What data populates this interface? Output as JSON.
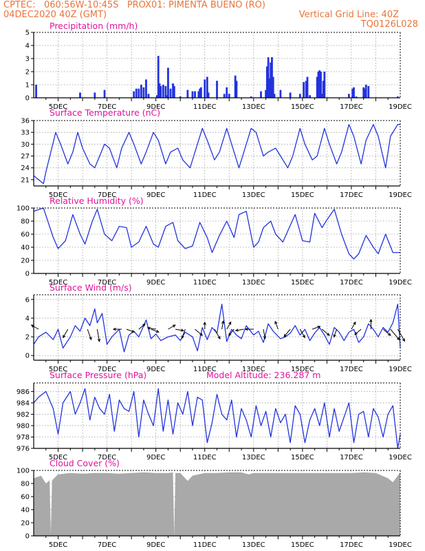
{
  "header": {
    "line1_left": "CPTEC:",
    "line1_coords": "060:56W-10:45S",
    "line1_station": "PROX01: PIMENTA BUENO (RO)",
    "line2_left": "04DEC2020 40Z (GMT)",
    "line2_right": "Vertical Grid Line: 40Z",
    "line3_right": "TQ0126L028"
  },
  "colors": {
    "header": "#e8743b",
    "title": "#e0139c",
    "line": "#2233dd",
    "cloud": "#a9a9a9"
  },
  "chart_data": [
    {
      "id": "precip",
      "type": "bar",
      "title": "Precipitation (mm/h)",
      "x_tick_labels": [
        "5DEC",
        "7DEC",
        "9DEC",
        "11DEC",
        "13DEC",
        "15DEC",
        "17DEC",
        "19DEC"
      ],
      "ylim": [
        0,
        5
      ],
      "yticks": [
        0,
        1,
        2,
        3,
        4,
        5
      ],
      "x_range_days": [
        4.0,
        19.0
      ],
      "grid": true,
      "x": [
        4.1,
        5.9,
        6.5,
        6.9,
        8.1,
        8.2,
        8.3,
        8.4,
        8.5,
        8.6,
        8.7,
        9.05,
        9.1,
        9.15,
        9.2,
        9.3,
        9.4,
        9.45,
        9.5,
        9.6,
        9.7,
        9.75,
        10.0,
        10.3,
        10.5,
        10.6,
        10.75,
        10.8,
        10.85,
        11.0,
        11.1,
        11.15,
        11.5,
        11.8,
        11.9,
        12.0,
        12.25,
        12.3,
        12.9,
        13.3,
        13.5,
        13.55,
        13.6,
        13.65,
        13.7,
        13.75,
        13.8,
        13.85,
        14.1,
        14.5,
        14.9,
        15.05,
        15.15,
        15.2,
        15.3,
        15.6,
        15.65,
        15.7,
        15.75,
        15.8,
        15.85,
        15.9,
        16.9,
        17.05,
        17.1,
        17.2,
        17.5,
        17.55,
        17.6,
        17.7,
        18.9
      ],
      "values": [
        1.0,
        0.4,
        0.4,
        0.6,
        0.5,
        0.7,
        0.7,
        1.0,
        0.8,
        1.4,
        0.3,
        0.2,
        3.2,
        1.1,
        0.9,
        1.0,
        0.9,
        0.2,
        2.3,
        0.7,
        1.1,
        0.9,
        0.1,
        0.6,
        0.5,
        0.5,
        0.5,
        0.7,
        0.8,
        1.4,
        1.6,
        0.4,
        1.3,
        0.3,
        0.8,
        0.3,
        1.7,
        1.3,
        0.1,
        0.5,
        0.6,
        2.4,
        3.1,
        1.5,
        2.7,
        3.1,
        1.6,
        0.3,
        0.6,
        0.4,
        0.3,
        1.2,
        1.3,
        1.6,
        0.2,
        1.6,
        2.0,
        2.1,
        2.0,
        0.3,
        1.3,
        2.0,
        0.3,
        0.7,
        0.8,
        0.1,
        0.8,
        0.7,
        1.0,
        0.9,
        0.1
      ]
    },
    {
      "id": "temp",
      "type": "line",
      "title": "Surface Temperature (nC)",
      "x_tick_labels": [
        "5DEC",
        "7DEC",
        "9DEC",
        "11DEC",
        "13DEC",
        "15DEC",
        "17DEC",
        "19DEC"
      ],
      "ylim": [
        19.4,
        36
      ],
      "yticks": [
        21,
        24,
        27,
        30,
        33,
        36
      ],
      "x_range_days": [
        4.0,
        19.0
      ],
      "grid": true,
      "x": [
        4.0,
        4.4,
        4.5,
        4.9,
        5.1,
        5.4,
        5.6,
        5.8,
        6.0,
        6.3,
        6.5,
        6.9,
        7.1,
        7.4,
        7.6,
        7.9,
        8.1,
        8.4,
        8.6,
        8.9,
        9.1,
        9.4,
        9.6,
        9.9,
        10.1,
        10.4,
        10.6,
        10.9,
        11.1,
        11.4,
        11.6,
        11.9,
        12.1,
        12.4,
        12.6,
        12.9,
        13.1,
        13.4,
        13.6,
        13.9,
        14.1,
        14.4,
        14.6,
        14.9,
        15.1,
        15.4,
        15.6,
        15.9,
        16.1,
        16.4,
        16.6,
        16.9,
        17.1,
        17.4,
        17.6,
        17.9,
        18.1,
        18.4,
        18.6,
        18.9,
        19.0
      ],
      "values": [
        22.0,
        20.0,
        23.0,
        33.0,
        30.0,
        25.0,
        28.0,
        33.0,
        29.0,
        25.0,
        24.0,
        30.0,
        29.0,
        24.0,
        29.0,
        33.0,
        30.0,
        25.0,
        28.0,
        33.0,
        31.0,
        25.0,
        28.0,
        29.0,
        26.0,
        24.0,
        28.0,
        34.0,
        31.0,
        26.0,
        28.0,
        34.0,
        30.0,
        24.0,
        28.0,
        34.0,
        33.0,
        27.0,
        28.0,
        29.0,
        27.0,
        24.0,
        27.0,
        34.0,
        30.0,
        26.0,
        27.0,
        34.0,
        30.0,
        25.0,
        28.0,
        35.0,
        32.0,
        25.0,
        31.0,
        35.0,
        32.0,
        24.0,
        32.0,
        35.0,
        35.0
      ]
    },
    {
      "id": "rh",
      "type": "line",
      "title": "Relative Humidity (%)",
      "x_tick_labels": [
        "5DEC",
        "7DEC",
        "9DEC",
        "11DEC",
        "13DEC",
        "15DEC",
        "17DEC",
        "19DEC"
      ],
      "ylim": [
        0,
        100
      ],
      "yticks": [
        0,
        20,
        40,
        60,
        80,
        100
      ],
      "x_range_days": [
        4.0,
        19.0
      ],
      "grid": true,
      "x": [
        4.0,
        4.4,
        4.8,
        5.0,
        5.3,
        5.6,
        5.9,
        6.1,
        6.4,
        6.6,
        6.9,
        7.2,
        7.5,
        7.8,
        8.0,
        8.3,
        8.6,
        8.9,
        9.1,
        9.4,
        9.7,
        9.9,
        10.2,
        10.5,
        10.8,
        11.1,
        11.3,
        11.6,
        11.9,
        12.2,
        12.4,
        12.7,
        13.0,
        13.2,
        13.4,
        13.7,
        13.9,
        14.2,
        14.4,
        14.7,
        15.0,
        15.3,
        15.5,
        15.8,
        16.0,
        16.3,
        16.6,
        16.9,
        17.1,
        17.3,
        17.6,
        17.9,
        18.1,
        18.4,
        18.7,
        19.0
      ],
      "values": [
        95.0,
        100.0,
        55.0,
        38.0,
        50.0,
        90.0,
        60.0,
        45.0,
        80.0,
        98.0,
        60.0,
        50.0,
        72.0,
        70.0,
        40.0,
        48.0,
        72.0,
        45.0,
        40.0,
        72.0,
        78.0,
        50.0,
        38.0,
        42.0,
        78.0,
        55.0,
        32.0,
        58.0,
        80.0,
        55.0,
        90.0,
        95.0,
        40.0,
        48.0,
        70.0,
        80.0,
        60.0,
        48.0,
        65.0,
        90.0,
        50.0,
        48.0,
        92.0,
        70.0,
        82.0,
        98.0,
        60.0,
        30.0,
        22.0,
        30.0,
        58.0,
        40.0,
        30.0,
        60.0,
        32.0,
        32.0
      ]
    },
    {
      "id": "wind",
      "type": "line",
      "title": "Surface Wind (m/s)",
      "x_tick_labels": [
        "5DEC",
        "7DEC",
        "9DEC",
        "11DEC",
        "13DEC",
        "15DEC",
        "17DEC",
        "19DEC"
      ],
      "ylim": [
        -0.5,
        6.5
      ],
      "yticks": [
        0,
        2,
        4,
        6
      ],
      "x_range_days": [
        4.0,
        19.0
      ],
      "grid": true,
      "x": [
        4.0,
        4.2,
        4.5,
        4.8,
        5.0,
        5.2,
        5.5,
        5.7,
        5.9,
        6.1,
        6.3,
        6.5,
        6.6,
        6.8,
        7.0,
        7.2,
        7.5,
        7.7,
        7.9,
        8.1,
        8.3,
        8.6,
        8.8,
        9.0,
        9.2,
        9.5,
        9.8,
        10.0,
        10.2,
        10.5,
        10.7,
        10.9,
        11.1,
        11.3,
        11.5,
        11.7,
        11.9,
        12.1,
        12.3,
        12.5,
        12.7,
        13.0,
        13.2,
        13.4,
        13.6,
        13.8,
        14.1,
        14.3,
        14.5,
        14.7,
        14.9,
        15.1,
        15.3,
        15.5,
        15.7,
        15.9,
        16.1,
        16.3,
        16.5,
        16.7,
        16.9,
        17.1,
        17.3,
        17.5,
        17.7,
        17.9,
        18.1,
        18.3,
        18.5,
        18.7,
        18.9,
        19.0
      ],
      "values": [
        1.2,
        2.0,
        2.5,
        1.7,
        2.8,
        0.8,
        2.0,
        3.2,
        2.6,
        4.0,
        3.2,
        5.0,
        3.5,
        4.5,
        1.2,
        2.0,
        2.8,
        0.4,
        2.2,
        2.6,
        2.0,
        3.8,
        1.8,
        2.3,
        1.6,
        2.0,
        2.2,
        1.6,
        2.5,
        2.0,
        0.5,
        3.0,
        1.7,
        3.0,
        2.4,
        5.5,
        1.5,
        2.8,
        2.2,
        1.8,
        3.2,
        2.2,
        2.6,
        1.4,
        3.4,
        2.6,
        1.8,
        2.0,
        2.4,
        3.2,
        2.2,
        2.8,
        1.6,
        2.4,
        3.0,
        2.2,
        1.2,
        3.0,
        2.5,
        1.6,
        2.5,
        2.8,
        1.4,
        2.0,
        3.4,
        2.8,
        2.0,
        3.0,
        2.5,
        3.5,
        5.5,
        0.8
      ],
      "arrows": {
        "x": [
          4.2,
          5.4,
          6.2,
          6.6,
          7.6,
          7.8,
          8.3,
          8.8,
          9.0,
          9.5,
          9.8,
          10.2,
          10.6,
          11.0,
          11.4,
          11.7,
          11.9,
          12.2,
          12.6,
          13.0,
          13.4,
          14.0,
          14.5,
          14.9,
          15.4,
          15.8,
          16.4,
          17.0,
          17.4,
          17.8,
          18.3,
          18.6,
          18.9
        ],
        "angles": [
          150.0,
          -120.0,
          -70.0,
          -80.0,
          180.0,
          -20.0,
          40.0,
          -20.0,
          170.0,
          30.0,
          -10.0,
          -110.0,
          -40.0,
          90.0,
          -60.0,
          80.0,
          60.0,
          -130.0,
          -170.0,
          180.0,
          -80.0,
          110.0,
          -130.0,
          -60.0,
          20.0,
          -40.0,
          -110.0,
          60.0,
          -140.0,
          90.0,
          -40.0,
          -50.0,
          -60.0
        ],
        "lengths": [
          12.0,
          14.0,
          16.0,
          18.0,
          12.0,
          12.0,
          12.0,
          12.0,
          12.0,
          12.0,
          12.0,
          14.0,
          14.0,
          10.0,
          16.0,
          12.0,
          12.0,
          12.0,
          12.0,
          12.0,
          14.0,
          12.0,
          14.0,
          14.0,
          12.0,
          14.0,
          12.0,
          12.0,
          12.0,
          14.0,
          14.0,
          20.0,
          20.0
        ]
      }
    },
    {
      "id": "pres",
      "type": "line",
      "title": "Surface Pressure (hPa)",
      "annotation": "Model Altitude: 236.287  m",
      "x_tick_labels": [
        "5DEC",
        "7DEC",
        "9DEC",
        "11DEC",
        "13DEC",
        "15DEC",
        "17DEC",
        "19DEC"
      ],
      "ylim": [
        976,
        987.5
      ],
      "yticks": [
        976,
        978,
        980,
        982,
        984,
        986
      ],
      "x_range_days": [
        4.0,
        19.0
      ],
      "grid": true,
      "x": [
        4.0,
        4.2,
        4.5,
        4.8,
        5.0,
        5.2,
        5.5,
        5.7,
        5.9,
        6.1,
        6.3,
        6.5,
        6.7,
        6.9,
        7.1,
        7.3,
        7.5,
        7.7,
        7.9,
        8.1,
        8.3,
        8.5,
        8.7,
        8.9,
        9.1,
        9.3,
        9.5,
        9.7,
        9.9,
        10.1,
        10.3,
        10.5,
        10.7,
        10.9,
        11.1,
        11.3,
        11.5,
        11.7,
        11.9,
        12.1,
        12.3,
        12.5,
        12.7,
        12.9,
        13.1,
        13.3,
        13.5,
        13.7,
        13.9,
        14.1,
        14.3,
        14.5,
        14.7,
        14.9,
        15.1,
        15.3,
        15.5,
        15.7,
        15.9,
        16.1,
        16.3,
        16.5,
        16.7,
        16.9,
        17.1,
        17.3,
        17.5,
        17.7,
        17.9,
        18.1,
        18.3,
        18.5,
        18.7,
        18.9,
        19.0
      ],
      "values": [
        984.0,
        985.0,
        986.0,
        983.0,
        978.5,
        984.0,
        986.0,
        982.0,
        984.0,
        986.5,
        981.0,
        985.0,
        983.0,
        982.0,
        985.5,
        979.0,
        984.5,
        983.0,
        982.5,
        986.0,
        978.0,
        984.5,
        982.0,
        980.0,
        986.5,
        979.0,
        984.5,
        978.5,
        984.0,
        982.0,
        986.0,
        980.0,
        985.0,
        984.5,
        977.0,
        980.5,
        985.5,
        982.0,
        981.0,
        984.5,
        978.0,
        983.0,
        981.0,
        978.0,
        983.5,
        980.0,
        982.5,
        978.0,
        983.0,
        980.5,
        982.0,
        977.0,
        983.5,
        982.0,
        977.0,
        981.0,
        983.0,
        980.0,
        984.0,
        978.0,
        983.0,
        979.0,
        981.5,
        984.0,
        977.0,
        982.0,
        982.5,
        978.0,
        983.0,
        981.5,
        978.0,
        982.0,
        983.5,
        976.0,
        978.5
      ]
    },
    {
      "id": "cloud",
      "type": "area",
      "title": "Cloud Cover (%)",
      "x_tick_labels": [
        "5DEC",
        "7DEC",
        "9DEC",
        "11DEC",
        "13DEC",
        "15DEC",
        "17DEC",
        "19DEC"
      ],
      "ylim": [
        0,
        100
      ],
      "yticks": [
        0,
        20,
        40,
        60,
        80,
        100
      ],
      "x_range_days": [
        4.0,
        19.0
      ],
      "grid": true,
      "x": [
        4.0,
        4.3,
        4.5,
        4.65,
        4.7,
        4.75,
        5.0,
        5.5,
        6.0,
        6.5,
        7.0,
        7.5,
        8.0,
        8.5,
        9.0,
        9.5,
        9.7,
        9.75,
        9.8,
        10.0,
        10.3,
        10.5,
        11.0,
        11.5,
        12.0,
        12.5,
        12.8,
        13.0,
        13.5,
        14.0,
        14.5,
        15.0,
        15.5,
        16.0,
        16.5,
        17.0,
        17.5,
        18.0,
        18.5,
        18.7,
        19.0
      ],
      "values": [
        88.0,
        92.0,
        80.0,
        85.0,
        3.0,
        85.0,
        94.0,
        96.0,
        95.0,
        96.0,
        96.0,
        95.0,
        96.0,
        97.0,
        96.0,
        96.0,
        97.0,
        0.0,
        96.0,
        96.0,
        84.0,
        92.0,
        96.0,
        96.0,
        97.0,
        97.0,
        94.0,
        96.0,
        96.0,
        96.0,
        96.0,
        96.0,
        96.0,
        96.0,
        96.0,
        96.0,
        97.0,
        96.0,
        88.0,
        82.0,
        97.0
      ]
    }
  ]
}
